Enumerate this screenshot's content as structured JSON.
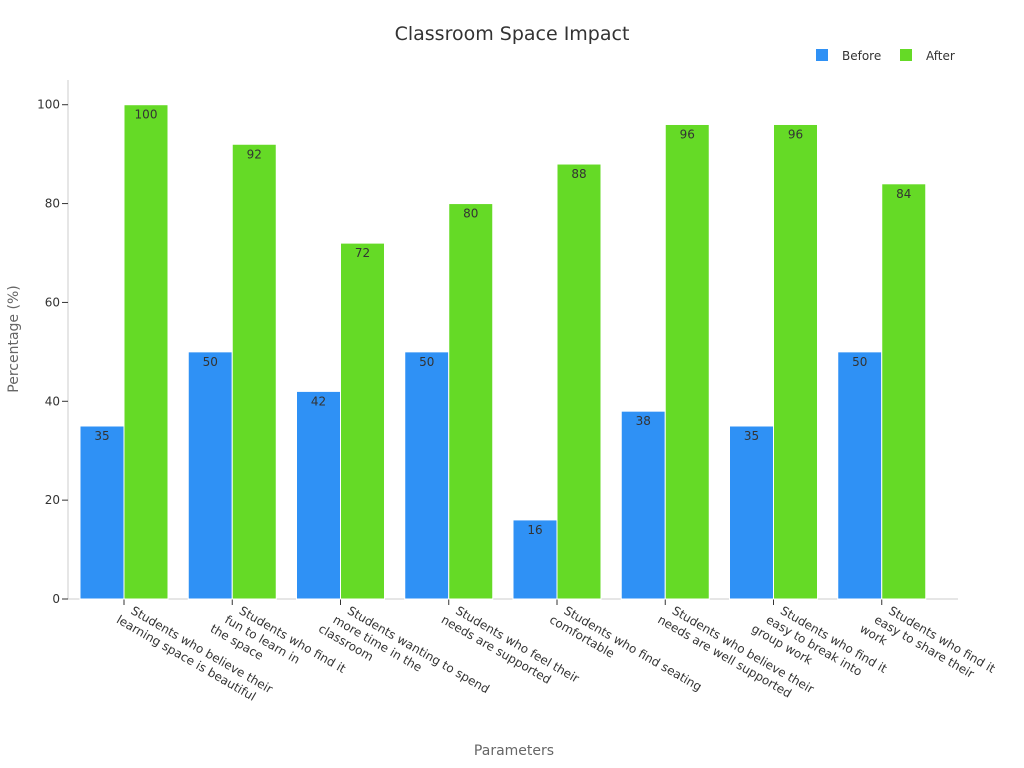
{
  "chart_data": {
    "type": "bar",
    "title": "Classroom Space Impact",
    "xlabel": "Parameters",
    "ylabel": "Percentage (%)",
    "ylim": [
      0,
      105
    ],
    "yticks": [
      0,
      20,
      40,
      60,
      80,
      100
    ],
    "grid": false,
    "legend_position": "top-right",
    "categories": [
      [
        "Students who believe their",
        "learning space is beautiful"
      ],
      [
        "Students who find it",
        "fun to learn in",
        "the space"
      ],
      [
        "Students wanting to spend",
        "more time in the",
        "classroom"
      ],
      [
        "Students who feel their",
        "needs are supported"
      ],
      [
        "Students who find seating",
        "comfortable"
      ],
      [
        "Students who believe their",
        "needs are well supported"
      ],
      [
        "Students who find it",
        "easy to break into",
        "group work"
      ],
      [
        "Students who find it",
        "easy to share their",
        "work"
      ]
    ],
    "series": [
      {
        "name": "Before",
        "color": "#2f91f5",
        "values": [
          35,
          50,
          42,
          50,
          16,
          38,
          35,
          50
        ]
      },
      {
        "name": "After",
        "color": "#65da26",
        "values": [
          100,
          92,
          72,
          80,
          88,
          96,
          96,
          84
        ]
      }
    ]
  }
}
